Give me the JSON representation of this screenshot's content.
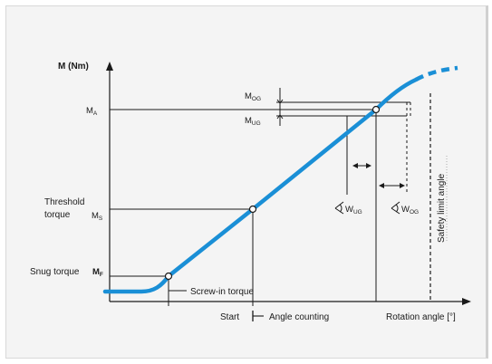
{
  "axes": {
    "y_label": "M (Nm)",
    "x_label": "Rotation angle [°]"
  },
  "labels": {
    "m_og": "M",
    "m_og_sub": "OG",
    "m_a": "M",
    "m_a_sub": "A",
    "m_ug": "M",
    "m_ug_sub": "UG",
    "threshold_line1": "Threshold",
    "threshold_line2": "torque",
    "m_s": "M",
    "m_s_sub": "S",
    "snug": "Snug torque",
    "m_f": "M",
    "m_f_sub": "F",
    "screw_in": "Screw-in torque",
    "start": "Start",
    "angle_counting": "Angle counting",
    "w_ug": "W",
    "w_ug_sub": "UG",
    "w_og": "W",
    "w_og_sub": "OG",
    "safety_limit": "Safety limit angle"
  },
  "colors": {
    "curve": "#1a8fd6",
    "ink": "#1a1a1a",
    "panel": "#f4f4f4"
  }
}
